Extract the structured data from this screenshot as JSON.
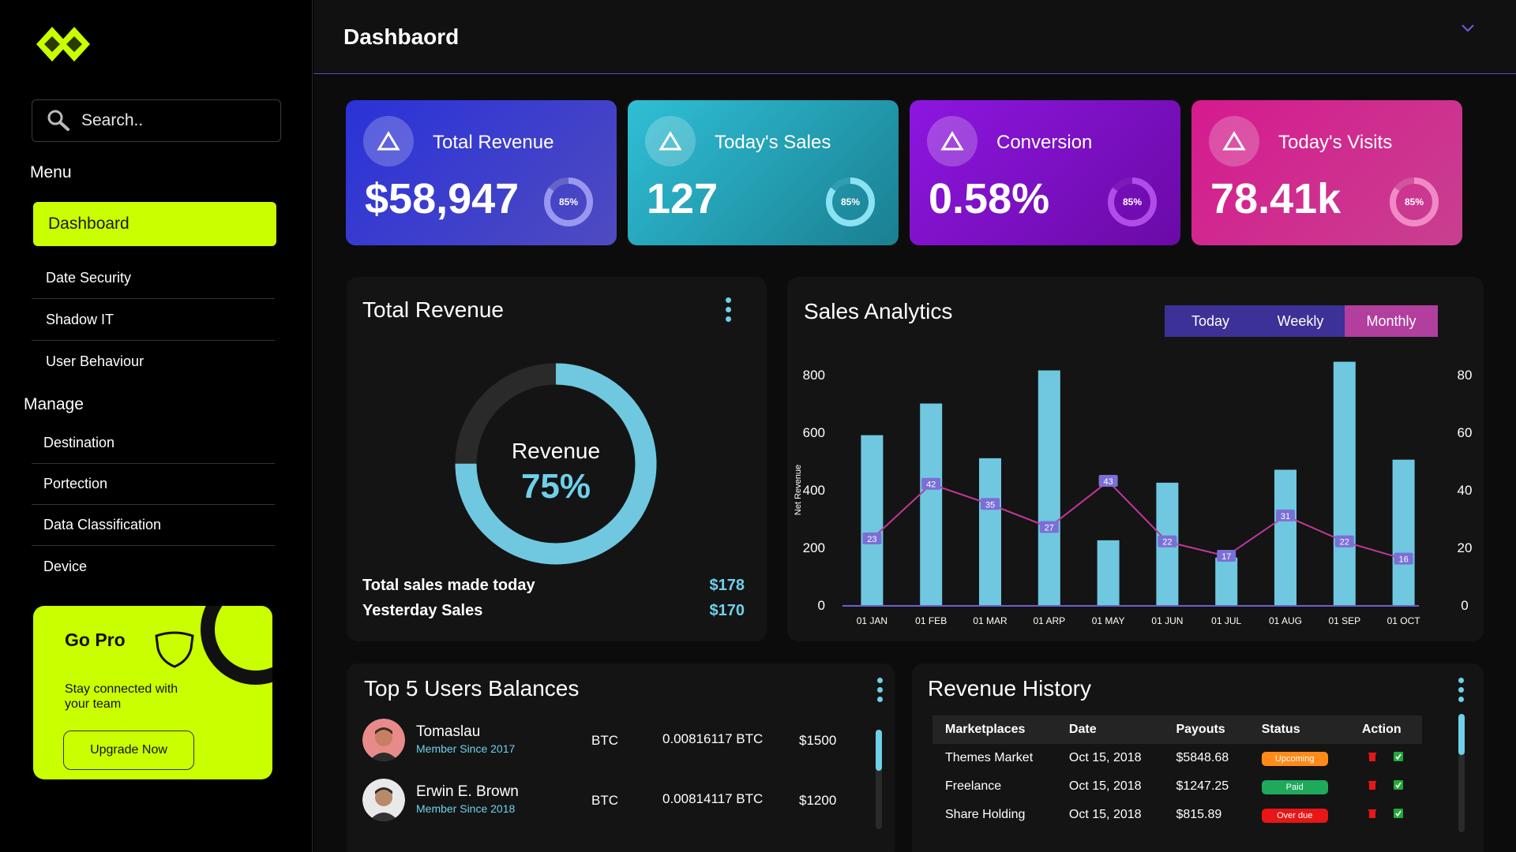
{
  "header": {
    "title": "Dashbaord"
  },
  "sidebar": {
    "search_placeholder": "Search..",
    "menu_title": "Menu",
    "menu_items": [
      {
        "label": "Dashboard",
        "active": true
      },
      {
        "label": "Date Security"
      },
      {
        "label": "Shadow IT"
      },
      {
        "label": "User Behaviour"
      }
    ],
    "manage_title": "Manage",
    "manage_items": [
      {
        "label": "Destination"
      },
      {
        "label": "Portection"
      },
      {
        "label": "Data Classification"
      },
      {
        "label": "Device"
      }
    ],
    "gopro": {
      "title": "Go Pro",
      "text": "Stay connected with your team",
      "button": "Upgrade Now"
    }
  },
  "stats": [
    {
      "label": "Total Revenue",
      "value": "$58,947",
      "percent_label": "85%",
      "percent": 0.85
    },
    {
      "label": "Today's Sales",
      "value": "127",
      "percent_label": "85%",
      "percent": 0.85
    },
    {
      "label": "Conversion",
      "value": "0.58%",
      "percent_label": "85%",
      "percent": 0.85
    },
    {
      "label": "Today's Visits",
      "value": "78.41k",
      "percent_label": "85%",
      "percent": 0.85
    }
  ],
  "total_revenue": {
    "title": "Total Revenue",
    "donut_label": "Revenue",
    "donut_value": "75%",
    "donut_fraction": 0.75,
    "rows": [
      {
        "label": "Total sales made today",
        "value": "$178"
      },
      {
        "label": "Yesterday Sales",
        "value": "$170"
      }
    ]
  },
  "sales_analytics": {
    "title": "Sales Analytics",
    "tabs": [
      "Today",
      "Weekly",
      "Monthly"
    ],
    "active_tab": "Monthly"
  },
  "chart_data": {
    "type": "bar",
    "categories": [
      "01 JAN",
      "01 FEB",
      "01 MAR",
      "01 ARP",
      "01 MAY",
      "01 JUN",
      "01 JUL",
      "01 AUG",
      "01 SEP",
      "01 OCT"
    ],
    "series": [
      {
        "type": "bar",
        "axis": "left",
        "values": [
          590,
          700,
          510,
          815,
          225,
          425,
          165,
          470,
          845,
          505
        ]
      },
      {
        "type": "line",
        "axis": "right",
        "values": [
          23,
          42,
          35,
          27,
          43,
          22,
          17,
          31,
          22,
          16
        ],
        "labels": [
          "23",
          "42",
          "35",
          "27",
          "43",
          "22",
          "17",
          "31",
          "22",
          "16"
        ]
      }
    ],
    "ylabel": "Net Revenue",
    "ylim": [
      0,
      800
    ],
    "y2lim": [
      0,
      80
    ],
    "yticks": [
      "0",
      "200",
      "400",
      "600",
      "800"
    ],
    "y2ticks": [
      "0",
      "20",
      "40",
      "60",
      "80"
    ],
    "colors": {
      "bar": "#6fc8e0",
      "line": "#c0389a",
      "label_bg": "#7b6fd6"
    }
  },
  "users": {
    "title": "Top 5 Users Balances",
    "rows": [
      {
        "name": "Tomaslau",
        "since": "Member Since 2017",
        "currency": "BTC",
        "btc": "0.00816117 BTC",
        "usd": "$1500"
      },
      {
        "name": "Erwin E. Brown",
        "since": "Member Since 2018",
        "currency": "BTC",
        "btc": "0.00814117 BTC",
        "usd": "$1200"
      }
    ]
  },
  "history": {
    "title": "Revenue History",
    "columns": [
      "Marketplaces",
      "Date",
      "Payouts",
      "Status",
      "Action"
    ],
    "rows": [
      {
        "market": "Themes Market",
        "date": "Oct 15, 2018",
        "payout": "$5848.68",
        "status": "Upcoming",
        "color": "#ff8a1a"
      },
      {
        "market": "Freelance",
        "date": "Oct 15, 2018",
        "payout": "$1247.25",
        "status": "Paid",
        "color": "#1eaa5a"
      },
      {
        "market": "Share Holding",
        "date": "Oct 15, 2018",
        "payout": "$815.89",
        "status": "Over due",
        "color": "#e81616"
      }
    ]
  }
}
